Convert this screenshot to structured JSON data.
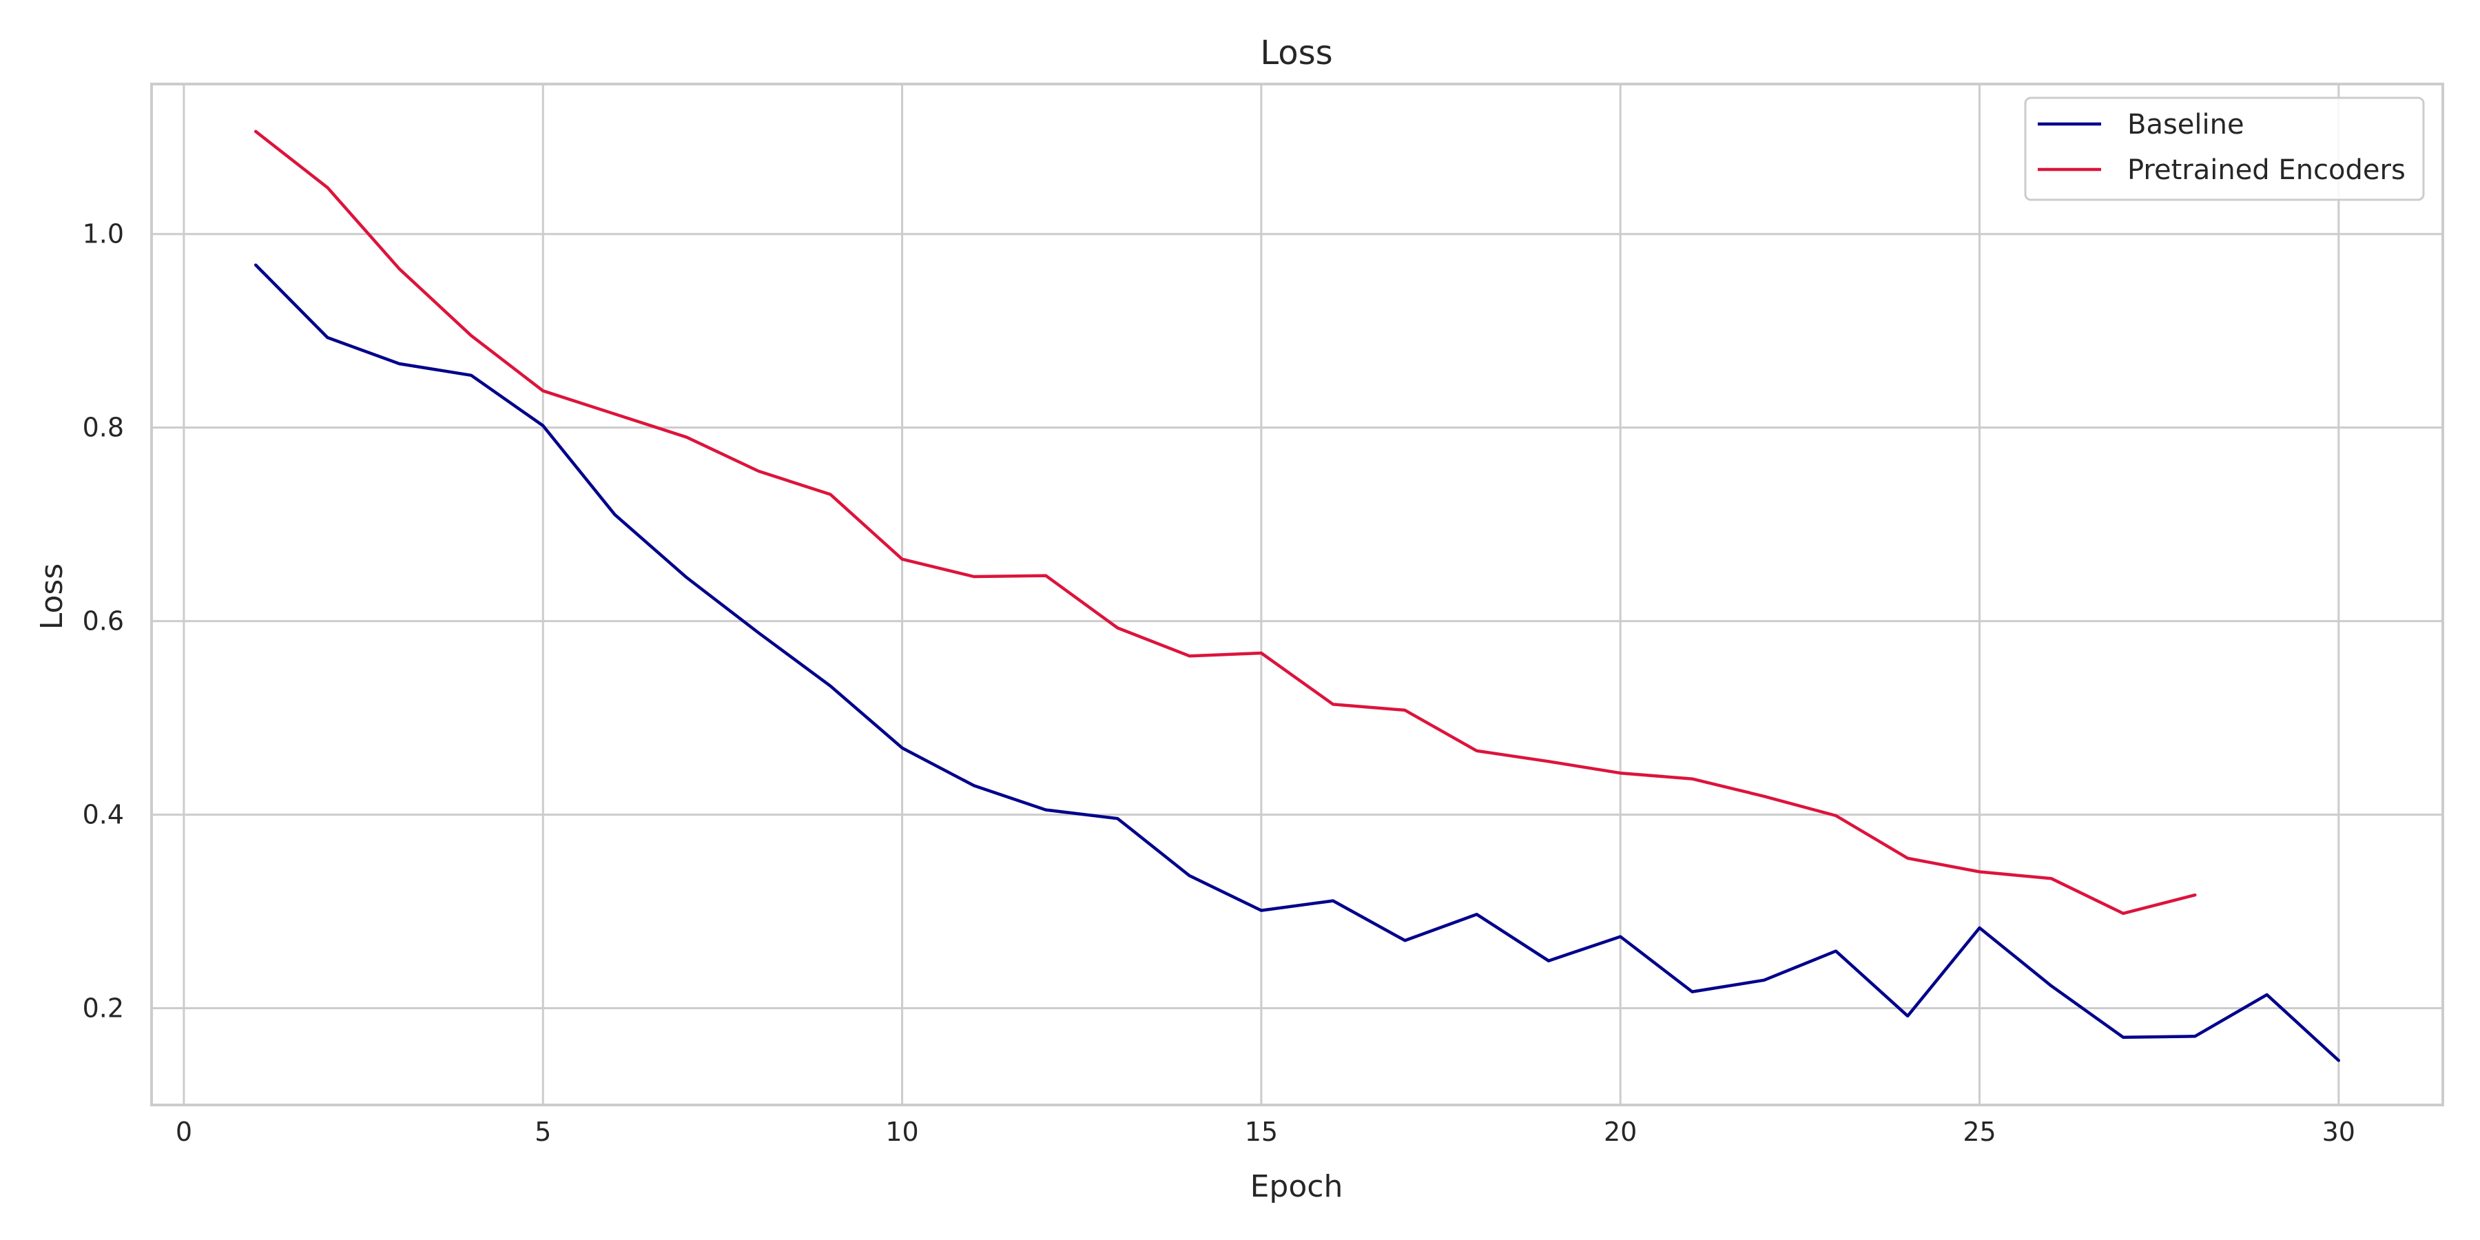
{
  "chart_data": {
    "type": "line",
    "title": "Loss",
    "xlabel": "Epoch",
    "ylabel": "Loss",
    "xlim": [
      -0.45,
      31.45
    ],
    "ylim": [
      0.1,
      1.155
    ],
    "x_ticks": [
      0,
      5,
      10,
      15,
      20,
      25,
      30
    ],
    "y_ticks": [
      0.2,
      0.4,
      0.6,
      0.8,
      1.0
    ],
    "x_tick_labels": [
      "0",
      "5",
      "10",
      "15",
      "20",
      "25",
      "30"
    ],
    "y_tick_labels": [
      "0.2",
      "0.4",
      "0.6",
      "0.8",
      "1.0"
    ],
    "grid": true,
    "legend_position": "top-right",
    "series": [
      {
        "name": "Baseline",
        "color": "#00008b",
        "x": [
          1,
          2,
          3,
          4,
          5,
          6,
          7,
          8,
          9,
          10,
          11,
          12,
          13,
          14,
          15,
          16,
          17,
          18,
          19,
          20,
          21,
          22,
          23,
          24,
          25,
          26,
          27,
          28,
          29,
          30
        ],
        "y": [
          0.968,
          0.893,
          0.866,
          0.854,
          0.802,
          0.71,
          0.645,
          0.588,
          0.533,
          0.469,
          0.43,
          0.405,
          0.396,
          0.337,
          0.301,
          0.311,
          0.27,
          0.297,
          0.249,
          0.274,
          0.217,
          0.229,
          0.259,
          0.192,
          0.283,
          0.223,
          0.17,
          0.171,
          0.214,
          0.146
        ]
      },
      {
        "name": "Pretrained Encoders",
        "color": "#dc143c",
        "x": [
          1,
          2,
          3,
          4,
          5,
          6,
          7,
          8,
          9,
          10,
          11,
          12,
          13,
          14,
          15,
          16,
          17,
          18,
          19,
          20,
          21,
          22,
          23,
          24,
          25,
          26,
          27,
          28
        ],
        "y": [
          1.106,
          1.048,
          0.964,
          0.895,
          0.838,
          0.814,
          0.79,
          0.755,
          0.731,
          0.664,
          0.646,
          0.647,
          0.593,
          0.564,
          0.567,
          0.514,
          0.508,
          0.466,
          0.455,
          0.443,
          0.437,
          0.419,
          0.399,
          0.355,
          0.341,
          0.334,
          0.298,
          0.317
        ]
      }
    ]
  }
}
